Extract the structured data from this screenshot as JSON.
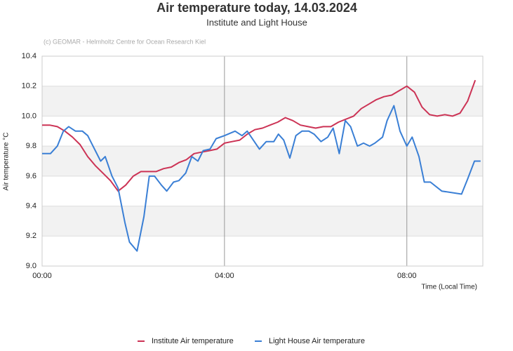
{
  "chart_data": {
    "type": "line",
    "title": "Air temperature today, 14.03.2024",
    "subtitle": "Institute and Light House",
    "annotation": "(c) GEOMAR - Helmholtz Centre for Ocean Research Kiel",
    "y_label": "Air temperature °C",
    "x_label": "Time (Local Time)",
    "grid": true,
    "legend": "bottom",
    "xlim": [
      0,
      580
    ],
    "xticks": [
      {
        "value": 0,
        "label": "00:00"
      },
      {
        "value": 240,
        "label": "04:00"
      },
      {
        "value": 480,
        "label": "08:00"
      }
    ],
    "ylim": [
      9.0,
      10.4
    ],
    "yticks": [
      {
        "value": 9.0,
        "label": "9.0"
      },
      9.2,
      9.4,
      9.6,
      9.8,
      {
        "value": 10.0,
        "label": "10.0"
      },
      10.2,
      10.4
    ],
    "series": [
      {
        "name": "Institute Air temperature",
        "color": "#cc3355",
        "x": [
          0,
          10,
          20,
          30,
          40,
          50,
          60,
          70,
          80,
          90,
          100,
          110,
          120,
          130,
          140,
          150,
          160,
          170,
          180,
          190,
          200,
          210,
          220,
          230,
          240,
          250,
          260,
          270,
          280,
          290,
          300,
          310,
          320,
          330,
          340,
          350,
          360,
          370,
          380,
          390,
          400,
          410,
          420,
          430,
          440,
          450,
          460,
          470,
          480,
          490,
          500,
          510,
          520,
          530,
          540,
          550,
          560,
          570
        ],
        "values": [
          9.94,
          9.94,
          9.93,
          9.9,
          9.86,
          9.81,
          9.73,
          9.67,
          9.62,
          9.57,
          9.5,
          9.54,
          9.6,
          9.63,
          9.63,
          9.63,
          9.65,
          9.66,
          9.69,
          9.71,
          9.75,
          9.76,
          9.77,
          9.78,
          9.82,
          9.83,
          9.84,
          9.88,
          9.91,
          9.92,
          9.94,
          9.96,
          9.99,
          9.97,
          9.94,
          9.93,
          9.92,
          9.93,
          9.93,
          9.96,
          9.98,
          10.0,
          10.05,
          10.08,
          10.11,
          10.13,
          10.14,
          10.17,
          10.2,
          10.16,
          10.06,
          10.01,
          10.0,
          10.01,
          10.0,
          10.02,
          10.1,
          10.24
        ]
      },
      {
        "name": "Light House Air temperature",
        "color": "#3a7fd5",
        "x": [
          0,
          11,
          20,
          28,
          35,
          44,
          53,
          60,
          67,
          77,
          83,
          92,
          100,
          109,
          115,
          125,
          134,
          141,
          148,
          157,
          164,
          173,
          180,
          189,
          197,
          205,
          212,
          221,
          229,
          240,
          254,
          263,
          270,
          286,
          295,
          305,
          311,
          318,
          326,
          334,
          342,
          351,
          358,
          367,
          376,
          383,
          391,
          399,
          406,
          415,
          423,
          431,
          438,
          448,
          454,
          463,
          471,
          480,
          487,
          496,
          503,
          511,
          526,
          552,
          560,
          569,
          577
        ],
        "values": [
          9.75,
          9.75,
          9.8,
          9.9,
          9.93,
          9.9,
          9.9,
          9.87,
          9.8,
          9.7,
          9.73,
          9.6,
          9.52,
          9.29,
          9.16,
          9.1,
          9.33,
          9.6,
          9.6,
          9.54,
          9.5,
          9.56,
          9.57,
          9.62,
          9.73,
          9.7,
          9.77,
          9.78,
          9.85,
          9.87,
          9.9,
          9.87,
          9.9,
          9.78,
          9.83,
          9.83,
          9.88,
          9.84,
          9.72,
          9.87,
          9.9,
          9.9,
          9.88,
          9.83,
          9.86,
          9.92,
          9.75,
          9.97,
          9.93,
          9.8,
          9.82,
          9.8,
          9.82,
          9.86,
          9.97,
          10.07,
          9.9,
          9.8,
          9.86,
          9.73,
          9.56,
          9.56,
          9.5,
          9.48,
          9.58,
          9.7,
          9.7
        ]
      }
    ]
  }
}
